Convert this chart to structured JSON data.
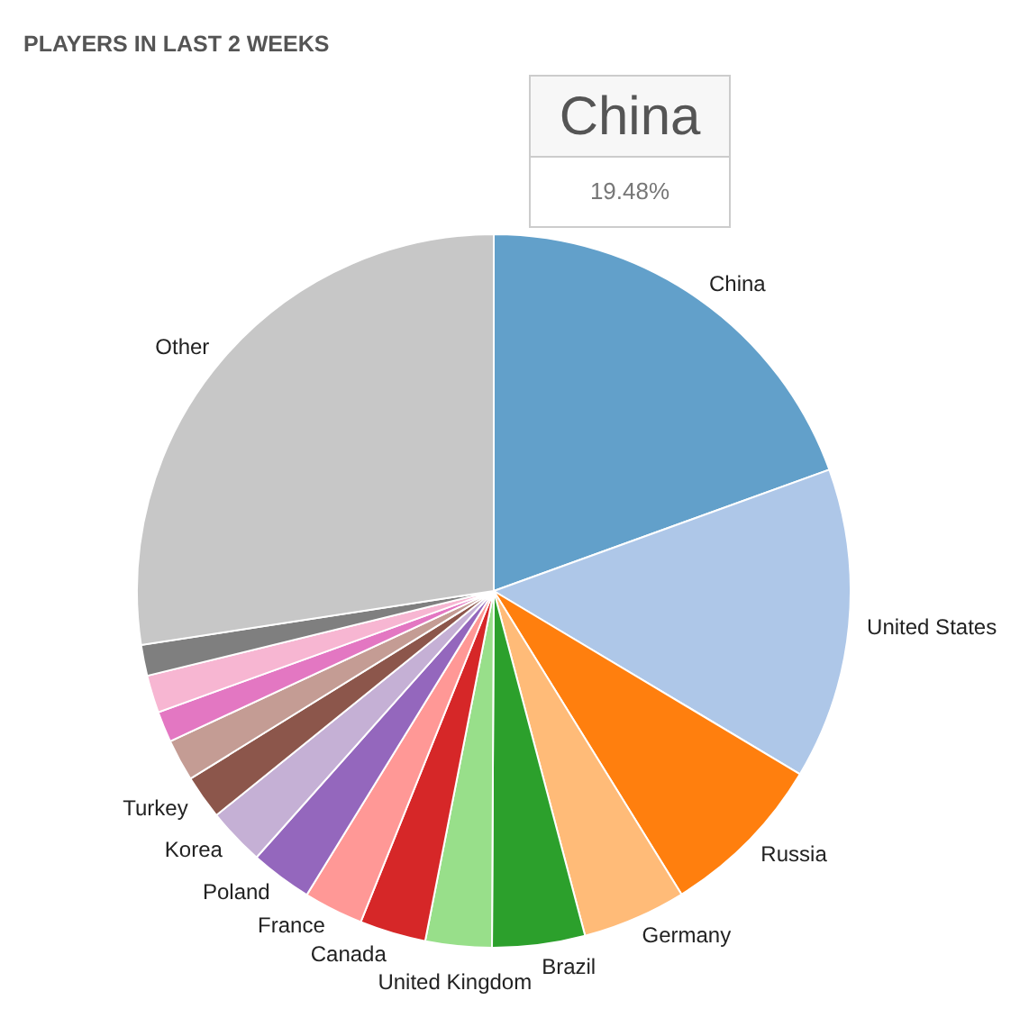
{
  "chart_data": {
    "type": "pie",
    "title": "PLAYERS IN LAST 2 WEEKS",
    "categories": [
      "China",
      "United States",
      "Russia",
      "Germany",
      "Brazil",
      "United Kingdom",
      "Canada",
      "France",
      "Poland",
      "Korea",
      "Turkey",
      null,
      null,
      null,
      null,
      "Other"
    ],
    "values": [
      19.48,
      14.1,
      7.6,
      4.7,
      4.2,
      3.0,
      3.0,
      2.7,
      2.8,
      2.6,
      2.0,
      1.9,
      1.4,
      1.7,
      1.4,
      27.42
    ],
    "colors": [
      "#62a0ca",
      "#aec7e8",
      "#ff7f0e",
      "#ffbb78",
      "#2ca02c",
      "#98df8a",
      "#d62728",
      "#ff9896",
      "#9467bd",
      "#c5b0d5",
      "#8c564b",
      "#c49c94",
      "#e377c2",
      "#f7b6d2",
      "#7f7f7f",
      "#c7c7c7"
    ],
    "value_labels": [
      "19.48%",
      null,
      null,
      null,
      null,
      null,
      null,
      null,
      null,
      null,
      null,
      null,
      null,
      null,
      null,
      null
    ]
  }
}
